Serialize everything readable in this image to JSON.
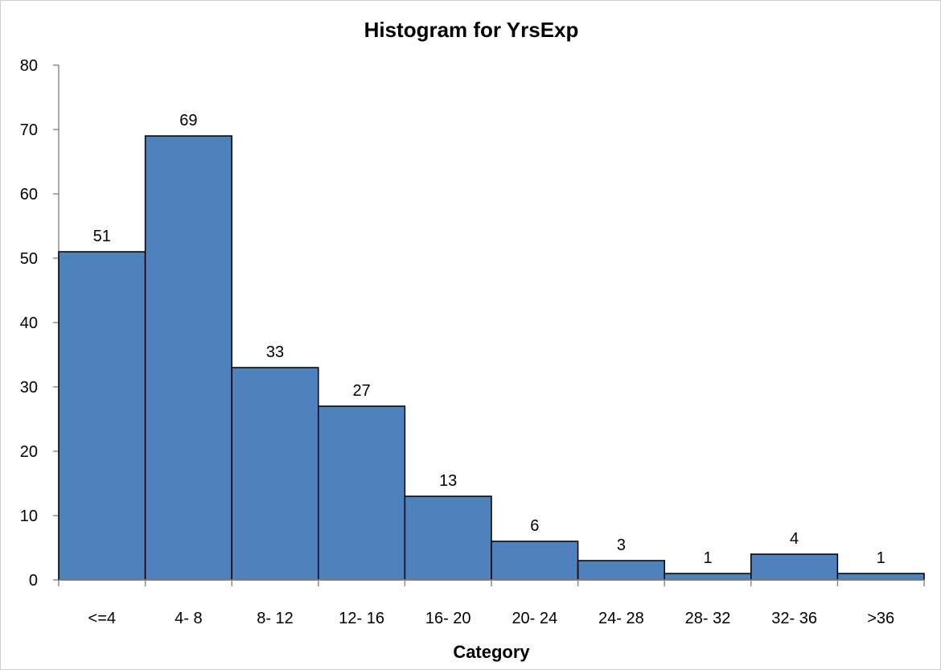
{
  "chart_data": {
    "type": "bar",
    "title": "Histogram for YrsExp",
    "xlabel": "Category",
    "ylabel": "",
    "categories": [
      "<=4",
      "4- 8",
      "8- 12",
      "12- 16",
      "16- 20",
      "20- 24",
      "24- 28",
      "28- 32",
      "32- 36",
      ">36"
    ],
    "values": [
      51,
      69,
      33,
      27,
      13,
      6,
      3,
      1,
      4,
      1
    ],
    "ylim": [
      0,
      80
    ],
    "yticks": [
      "0",
      "10",
      "20",
      "30",
      "40",
      "50",
      "60",
      "70",
      "80"
    ],
    "bar_color": "#4f81bd",
    "grid": false,
    "legend": "none",
    "data_labels": true
  }
}
